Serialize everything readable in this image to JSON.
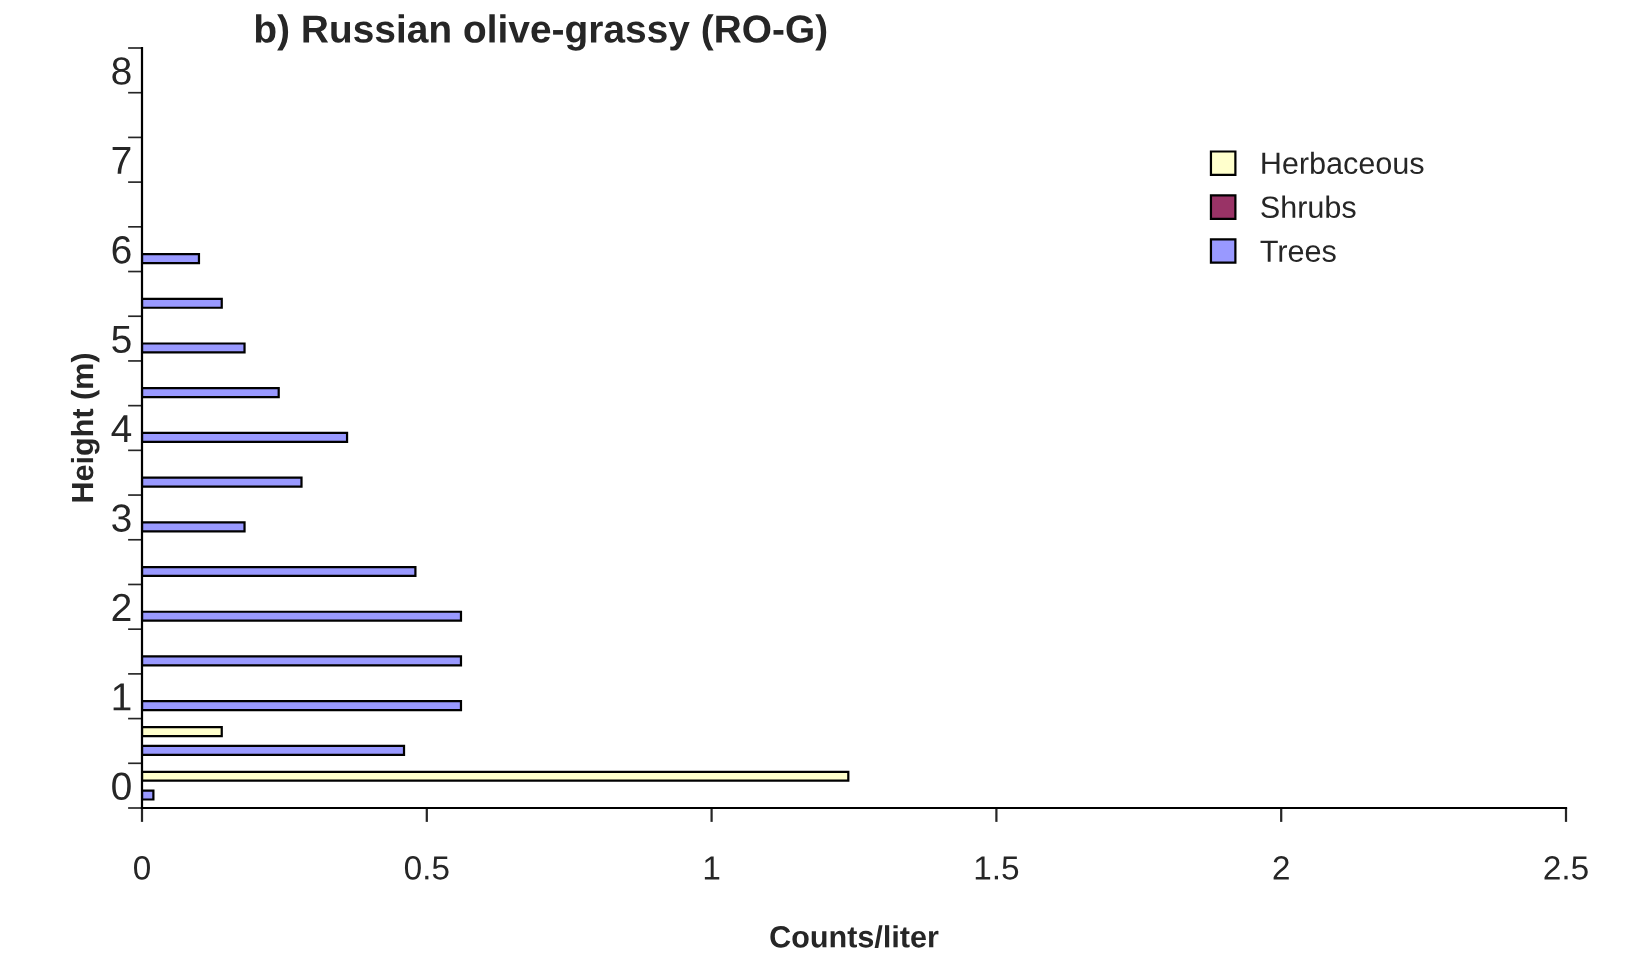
{
  "chart_data": {
    "type": "bar",
    "orientation": "horizontal",
    "title": "b) Russian olive-grassy (RO-G)",
    "xlabel": "Counts/liter",
    "ylabel": "Height (m)",
    "categories": [
      "8",
      null,
      "7",
      null,
      "6",
      null,
      "5",
      null,
      "4",
      null,
      "3",
      null,
      "2",
      null,
      "1",
      null,
      "0"
    ],
    "series": [
      {
        "name": "Herbaceous",
        "color": "#ffffcc",
        "values": [
          null,
          null,
          null,
          null,
          null,
          null,
          null,
          null,
          null,
          null,
          null,
          null,
          null,
          null,
          null,
          0.14,
          1.24
        ]
      },
      {
        "name": "Shrubs",
        "color": "#993366",
        "values": [
          null,
          null,
          null,
          null,
          null,
          null,
          null,
          null,
          null,
          null,
          null,
          null,
          null,
          null,
          null,
          null,
          null
        ]
      },
      {
        "name": "Trees",
        "color": "#9999ff",
        "values": [
          null,
          null,
          null,
          null,
          0.1,
          0.14,
          0.18,
          0.24,
          0.36,
          0.28,
          0.18,
          0.48,
          0.56,
          0.56,
          0.56,
          0.46,
          0.02
        ]
      }
    ],
    "xlim": [
      0,
      2.5
    ],
    "xticks": [
      0,
      0.5,
      1,
      1.5,
      2,
      2.5
    ],
    "grid": false,
    "legend": "top right"
  }
}
